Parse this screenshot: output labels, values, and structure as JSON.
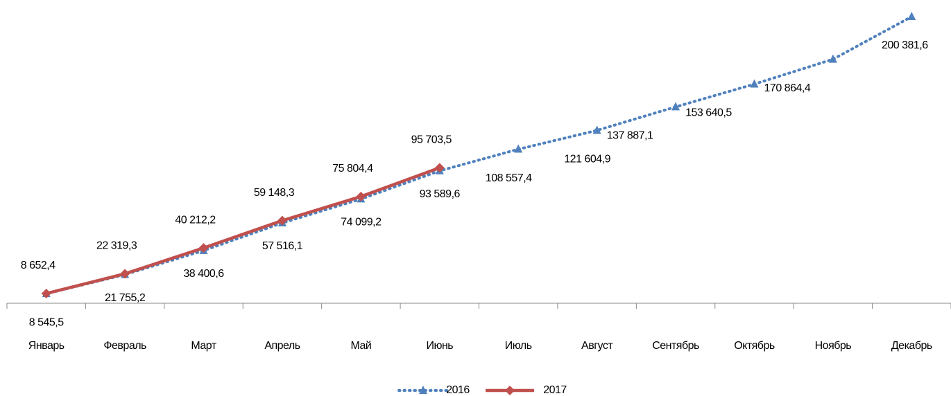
{
  "chart_data": {
    "type": "line",
    "categories": [
      "Январь",
      "Февраль",
      "Март",
      "Апрель",
      "Май",
      "Июнь",
      "Июль",
      "Август",
      "Сентябрь",
      "Октябрь",
      "Ноябрь",
      "Декабрь"
    ],
    "series": [
      {
        "name": "2016",
        "color": "#4f81bd",
        "values": [
          8545.5,
          21755.2,
          38400.6,
          57516.1,
          74099.2,
          93589.6,
          108557.4,
          121604.9,
          137887.1,
          153640.5,
          170864.4,
          200381.6
        ],
        "value_labels": [
          "8 545,5",
          "21 755,2",
          "38 400,6",
          "57 516,1",
          "74 099,2",
          "93 589,6",
          "108 557,4",
          "121 604,9",
          "137 887,1",
          "153 640,5",
          "170 864,4",
          "200 381,6"
        ]
      },
      {
        "name": "2017",
        "color": "#c0504d",
        "values": [
          8652.4,
          22319.3,
          40212.2,
          59148.3,
          75804.4,
          95703.5,
          null,
          null,
          null,
          null,
          null,
          null
        ],
        "value_labels": [
          "8 652,4",
          "22 319,3",
          "40 212,2",
          "59 148,3",
          "75 804,4",
          "95 703,5",
          null,
          null,
          null,
          null,
          null,
          null
        ]
      }
    ],
    "legend": "bottom"
  }
}
